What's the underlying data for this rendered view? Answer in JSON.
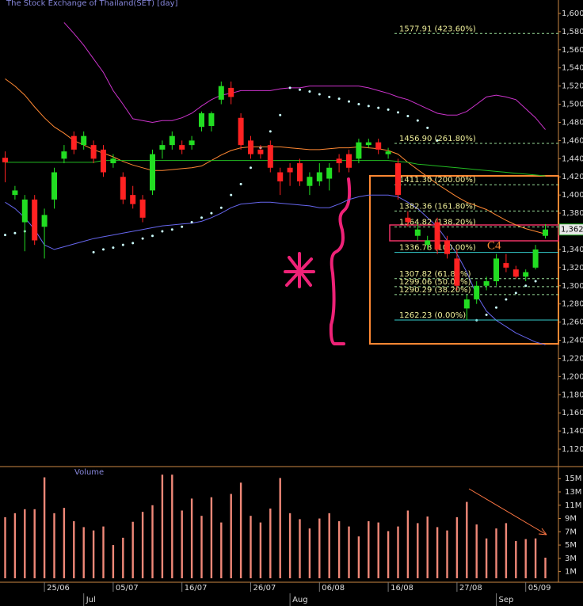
{
  "chart_data": [
    {
      "type": "candlestick",
      "title": "The Stock Exchange of Thailand(SET) [day]",
      "annotations": [
        "C4"
      ],
      "up_color": "#22dd22",
      "down_color": "#ff2222",
      "open": [
        1441,
        1400,
        1370,
        1395,
        1365,
        1395,
        1440,
        1465,
        1455,
        1455,
        1450,
        1435,
        1420,
        1400,
        1395,
        1405,
        1450,
        1455,
        1455,
        1455,
        1475,
        1476,
        1505,
        1518,
        1485,
        1460,
        1450,
        1455,
        1425,
        1430,
        1435,
        1410,
        1415,
        1418,
        1440,
        1445,
        1440,
        1455,
        1458,
        1445,
        1435,
        1375,
        1355,
        1345,
        1370,
        1350,
        1330,
        1275,
        1285,
        1300,
        1305,
        1325,
        1318,
        1310,
        1320,
        1355
      ],
      "high": [
        1448,
        1410,
        1400,
        1400,
        1385,
        1430,
        1455,
        1470,
        1470,
        1460,
        1455,
        1445,
        1425,
        1410,
        1400,
        1450,
        1460,
        1470,
        1460,
        1465,
        1492,
        1492,
        1525,
        1525,
        1490,
        1465,
        1455,
        1460,
        1430,
        1435,
        1440,
        1425,
        1435,
        1435,
        1445,
        1450,
        1462,
        1462,
        1462,
        1452,
        1440,
        1382,
        1368,
        1355,
        1375,
        1355,
        1340,
        1290,
        1305,
        1310,
        1335,
        1335,
        1322,
        1318,
        1345,
        1368
      ],
      "low": [
        1414,
        1395,
        1338,
        1345,
        1330,
        1385,
        1435,
        1445,
        1450,
        1435,
        1420,
        1430,
        1390,
        1385,
        1370,
        1400,
        1440,
        1450,
        1445,
        1450,
        1470,
        1470,
        1500,
        1500,
        1450,
        1440,
        1440,
        1425,
        1400,
        1410,
        1410,
        1400,
        1410,
        1405,
        1425,
        1425,
        1435,
        1452,
        1445,
        1440,
        1395,
        1365,
        1350,
        1340,
        1335,
        1330,
        1295,
        1262,
        1280,
        1295,
        1300,
        1315,
        1308,
        1305,
        1318,
        1352
      ],
      "close": [
        1436,
        1405,
        1395,
        1350,
        1378,
        1425,
        1448,
        1450,
        1465,
        1440,
        1425,
        1440,
        1395,
        1390,
        1375,
        1445,
        1455,
        1465,
        1450,
        1460,
        1490,
        1490,
        1520,
        1508,
        1455,
        1445,
        1445,
        1430,
        1415,
        1425,
        1415,
        1420,
        1425,
        1430,
        1435,
        1430,
        1458,
        1458,
        1450,
        1448,
        1400,
        1370,
        1362,
        1350,
        1340,
        1335,
        1300,
        1285,
        1300,
        1305,
        1330,
        1320,
        1310,
        1315,
        1340,
        1362
      ],
      "overlays": [
        {
          "color": "#cc33cc",
          "style": "line",
          "values": [
            null,
            null,
            null,
            null,
            null,
            null,
            1590,
            1578,
            1565,
            1550,
            1535,
            1515,
            1500,
            1484,
            1482,
            1480,
            1482,
            1482,
            1485,
            1490,
            1498,
            1505,
            1510,
            1512,
            1515,
            1515,
            1515,
            1515,
            1517,
            1518,
            1518,
            1520,
            1520,
            1520,
            1520,
            1520,
            1520,
            1518,
            1515,
            1512,
            1508,
            1505,
            1500,
            1495,
            1490,
            1488,
            1488,
            1492,
            1500,
            1508,
            1510,
            1508,
            1505,
            1495,
            1485,
            1472
          ]
        },
        {
          "color": "#6666ee",
          "style": "line",
          "values": [
            1392,
            1385,
            1375,
            1362,
            1345,
            1340,
            1343,
            1346,
            1349,
            1352,
            1354,
            1356,
            1358,
            1360,
            1362,
            1364,
            1366,
            1367,
            1368,
            1369,
            1371,
            1375,
            1380,
            1386,
            1390,
            1391,
            1392,
            1392,
            1391,
            1390,
            1389,
            1388,
            1386,
            1386,
            1390,
            1395,
            1398,
            1400,
            1400,
            1400,
            1398,
            1392,
            1385,
            1375,
            1365,
            1350,
            1335,
            1315,
            1290,
            1272,
            1262,
            1255,
            1248,
            1243,
            1238,
            1235
          ]
        },
        {
          "color": "#ff8833",
          "style": "line",
          "values": [
            1528,
            1520,
            1510,
            1497,
            1485,
            1475,
            1468,
            1460,
            1455,
            1450,
            1446,
            1442,
            1437,
            1433,
            1430,
            1427,
            1427,
            1428,
            1429,
            1430,
            1432,
            1438,
            1444,
            1449,
            1452,
            1453,
            1453,
            1453,
            1453,
            1452,
            1451,
            1450,
            1450,
            1451,
            1452,
            1452,
            1453,
            1452,
            1451,
            1449,
            1445,
            1436,
            1428,
            1420,
            1412,
            1405,
            1398,
            1392,
            1388,
            1384,
            1378,
            1372,
            1367,
            1363,
            1360,
            1357
          ]
        },
        {
          "color": "#22bb22",
          "style": "line",
          "values": [
            1436,
            1436,
            1436,
            1436,
            1436,
            1436,
            1436,
            1436,
            1436,
            1436,
            1438,
            1438,
            1438,
            1438,
            1438,
            1438,
            1438,
            1438,
            1438,
            1438,
            1438,
            1438,
            1438,
            1438,
            1438,
            1438,
            1438,
            1438,
            1438,
            1438,
            1438,
            1438,
            1438,
            1438,
            1438,
            1438,
            1438,
            1438,
            1438,
            1438,
            1437,
            1436,
            1434,
            1433,
            1432,
            1431,
            1430,
            1429,
            1428,
            1427,
            1426,
            1425,
            1424,
            1423,
            1422,
            1421
          ]
        },
        {
          "color": "#ccffff",
          "style": "dots",
          "values": [
            1356,
            1358,
            1360,
            null,
            null,
            null,
            null,
            null,
            null,
            1337,
            1340,
            1342,
            1345,
            1347,
            1352,
            1355,
            1360,
            1362,
            1365,
            1370,
            1375,
            1380,
            1386,
            1400,
            1412,
            1430,
            1452,
            1470,
            1488,
            1518,
            1516,
            1514,
            1511,
            1508,
            1506,
            1503,
            1500,
            1498,
            1496,
            1494,
            1491,
            1487,
            1482,
            1474,
            1460,
            null,
            null,
            null,
            1262,
            1268,
            1276,
            1285,
            1292,
            1300,
            1305,
            null
          ]
        }
      ],
      "fib": {
        "values": [
          1577.91,
          1456.9,
          1411.3,
          1382.36,
          1364.82,
          1336.78,
          1307.82,
          1299.06,
          1290.29,
          1262.23
        ],
        "value_labels": [
          "1577.91 (423.60%)",
          "1456.90 (261.80%)",
          "1411.30 (200.00%)",
          "1382.36 (161.80%)",
          "1364.82 (138.20%)",
          "1336.78 (100.00%)",
          "1307.82 (61.80%)",
          "1299.06 (50.00%)",
          "1290.29 (38.20%)",
          "1262.23 (0.00%)"
        ],
        "styles": [
          "dashed",
          "dashed",
          "dashed",
          "dashed",
          "dashed",
          "solid",
          "dashed",
          "dashed",
          "dashed",
          "solid"
        ],
        "colors": [
          "#99dd99",
          "#99dd99",
          "#99dd99",
          "#99dd99",
          "#99dd99",
          "#33cccc",
          "#99dd99",
          "#99dd99",
          "#99dd99",
          "#33cccc"
        ]
      },
      "last_price": {
        "value": 1362,
        "label": "1,362.0"
      },
      "ylim": [
        1101.7,
        1614.8
      ],
      "yticks": [
        {
          "value": 1600,
          "label": "1,600"
        },
        {
          "value": 1580,
          "label": "1,580"
        },
        {
          "value": 1560,
          "label": "1,560"
        },
        {
          "value": 1540,
          "label": "1,540"
        },
        {
          "value": 1520,
          "label": "1,520"
        },
        {
          "value": 1500,
          "label": "1,500"
        },
        {
          "value": 1480,
          "label": "1,480"
        },
        {
          "value": 1460,
          "label": "1,460"
        },
        {
          "value": 1440,
          "label": "1,440"
        },
        {
          "value": 1420,
          "label": "1,420"
        },
        {
          "value": 1400,
          "label": "1,400"
        },
        {
          "value": 1380,
          "label": "1,380"
        },
        {
          "value": 1360,
          "label": "1,360"
        },
        {
          "value": 1340,
          "label": "1,340"
        },
        {
          "value": 1320,
          "label": "1,320"
        },
        {
          "value": 1300,
          "label": "1,300"
        },
        {
          "value": 1280,
          "label": "1,280"
        },
        {
          "value": 1260,
          "label": "1,260"
        },
        {
          "value": 1240,
          "label": "1,240"
        },
        {
          "value": 1220,
          "label": "1,220"
        },
        {
          "value": 1200,
          "label": "1,200"
        },
        {
          "value": 1180,
          "label": "1,180"
        },
        {
          "value": 1160,
          "label": "1,160"
        },
        {
          "value": 1140,
          "label": "1,140"
        },
        {
          "value": 1120,
          "label": "1,120"
        }
      ]
    },
    {
      "type": "bar",
      "title": "Volume",
      "color": "#f08878",
      "categories": [
        null,
        null,
        null,
        null,
        "25/06",
        null,
        null,
        null,
        null,
        null,
        null,
        "05/07",
        null,
        null,
        null,
        null,
        null,
        null,
        "16/07",
        null,
        null,
        null,
        null,
        null,
        null,
        "26/07",
        null,
        null,
        null,
        null,
        null,
        null,
        "06/08",
        null,
        null,
        null,
        null,
        null,
        null,
        "16/08",
        null,
        null,
        null,
        null,
        null,
        null,
        "27/08",
        null,
        null,
        null,
        null,
        null,
        null,
        "05/09",
        null,
        null
      ],
      "months": [
        null,
        null,
        null,
        null,
        null,
        null,
        null,
        null,
        "Jul",
        null,
        null,
        null,
        null,
        null,
        null,
        null,
        null,
        null,
        null,
        null,
        null,
        null,
        null,
        null,
        null,
        null,
        null,
        null,
        null,
        "Aug",
        null,
        null,
        null,
        null,
        null,
        null,
        null,
        null,
        null,
        null,
        null,
        null,
        null,
        null,
        null,
        null,
        null,
        null,
        null,
        null,
        "Sep",
        null,
        null,
        null,
        null,
        null
      ],
      "values": [
        9.2,
        9.8,
        10.4,
        10.4,
        15.2,
        9.8,
        10.6,
        8.6,
        7.7,
        7.2,
        7.8,
        5.0,
        6.1,
        8.5,
        10.0,
        11.0,
        15.6,
        15.6,
        10.2,
        12.0,
        9.4,
        12.2,
        8.4,
        12.7,
        14.4,
        9.4,
        8.4,
        10.5,
        15.1,
        9.8,
        8.9,
        7.5,
        9.0,
        9.8,
        8.6,
        7.8,
        6.3,
        8.6,
        8.4,
        7.1,
        7.8,
        10.2,
        8.3,
        9.3,
        7.7,
        7.2,
        9.2,
        11.5,
        8.1,
        6.0,
        7.5,
        8.3,
        5.6,
        5.9,
        6.0,
        3.1
      ],
      "ylim": [
        -0.6,
        16.7
      ],
      "yticks": [
        {
          "value": 15,
          "label": "15M"
        },
        {
          "value": 13,
          "label": "13M"
        },
        {
          "value": 11,
          "label": "11M"
        },
        {
          "value": 9,
          "label": "9M"
        },
        {
          "value": 7,
          "label": "7M"
        },
        {
          "value": 5,
          "label": "5M"
        },
        {
          "value": 3,
          "label": "3M"
        },
        {
          "value": 1,
          "label": "1M"
        }
      ]
    }
  ]
}
